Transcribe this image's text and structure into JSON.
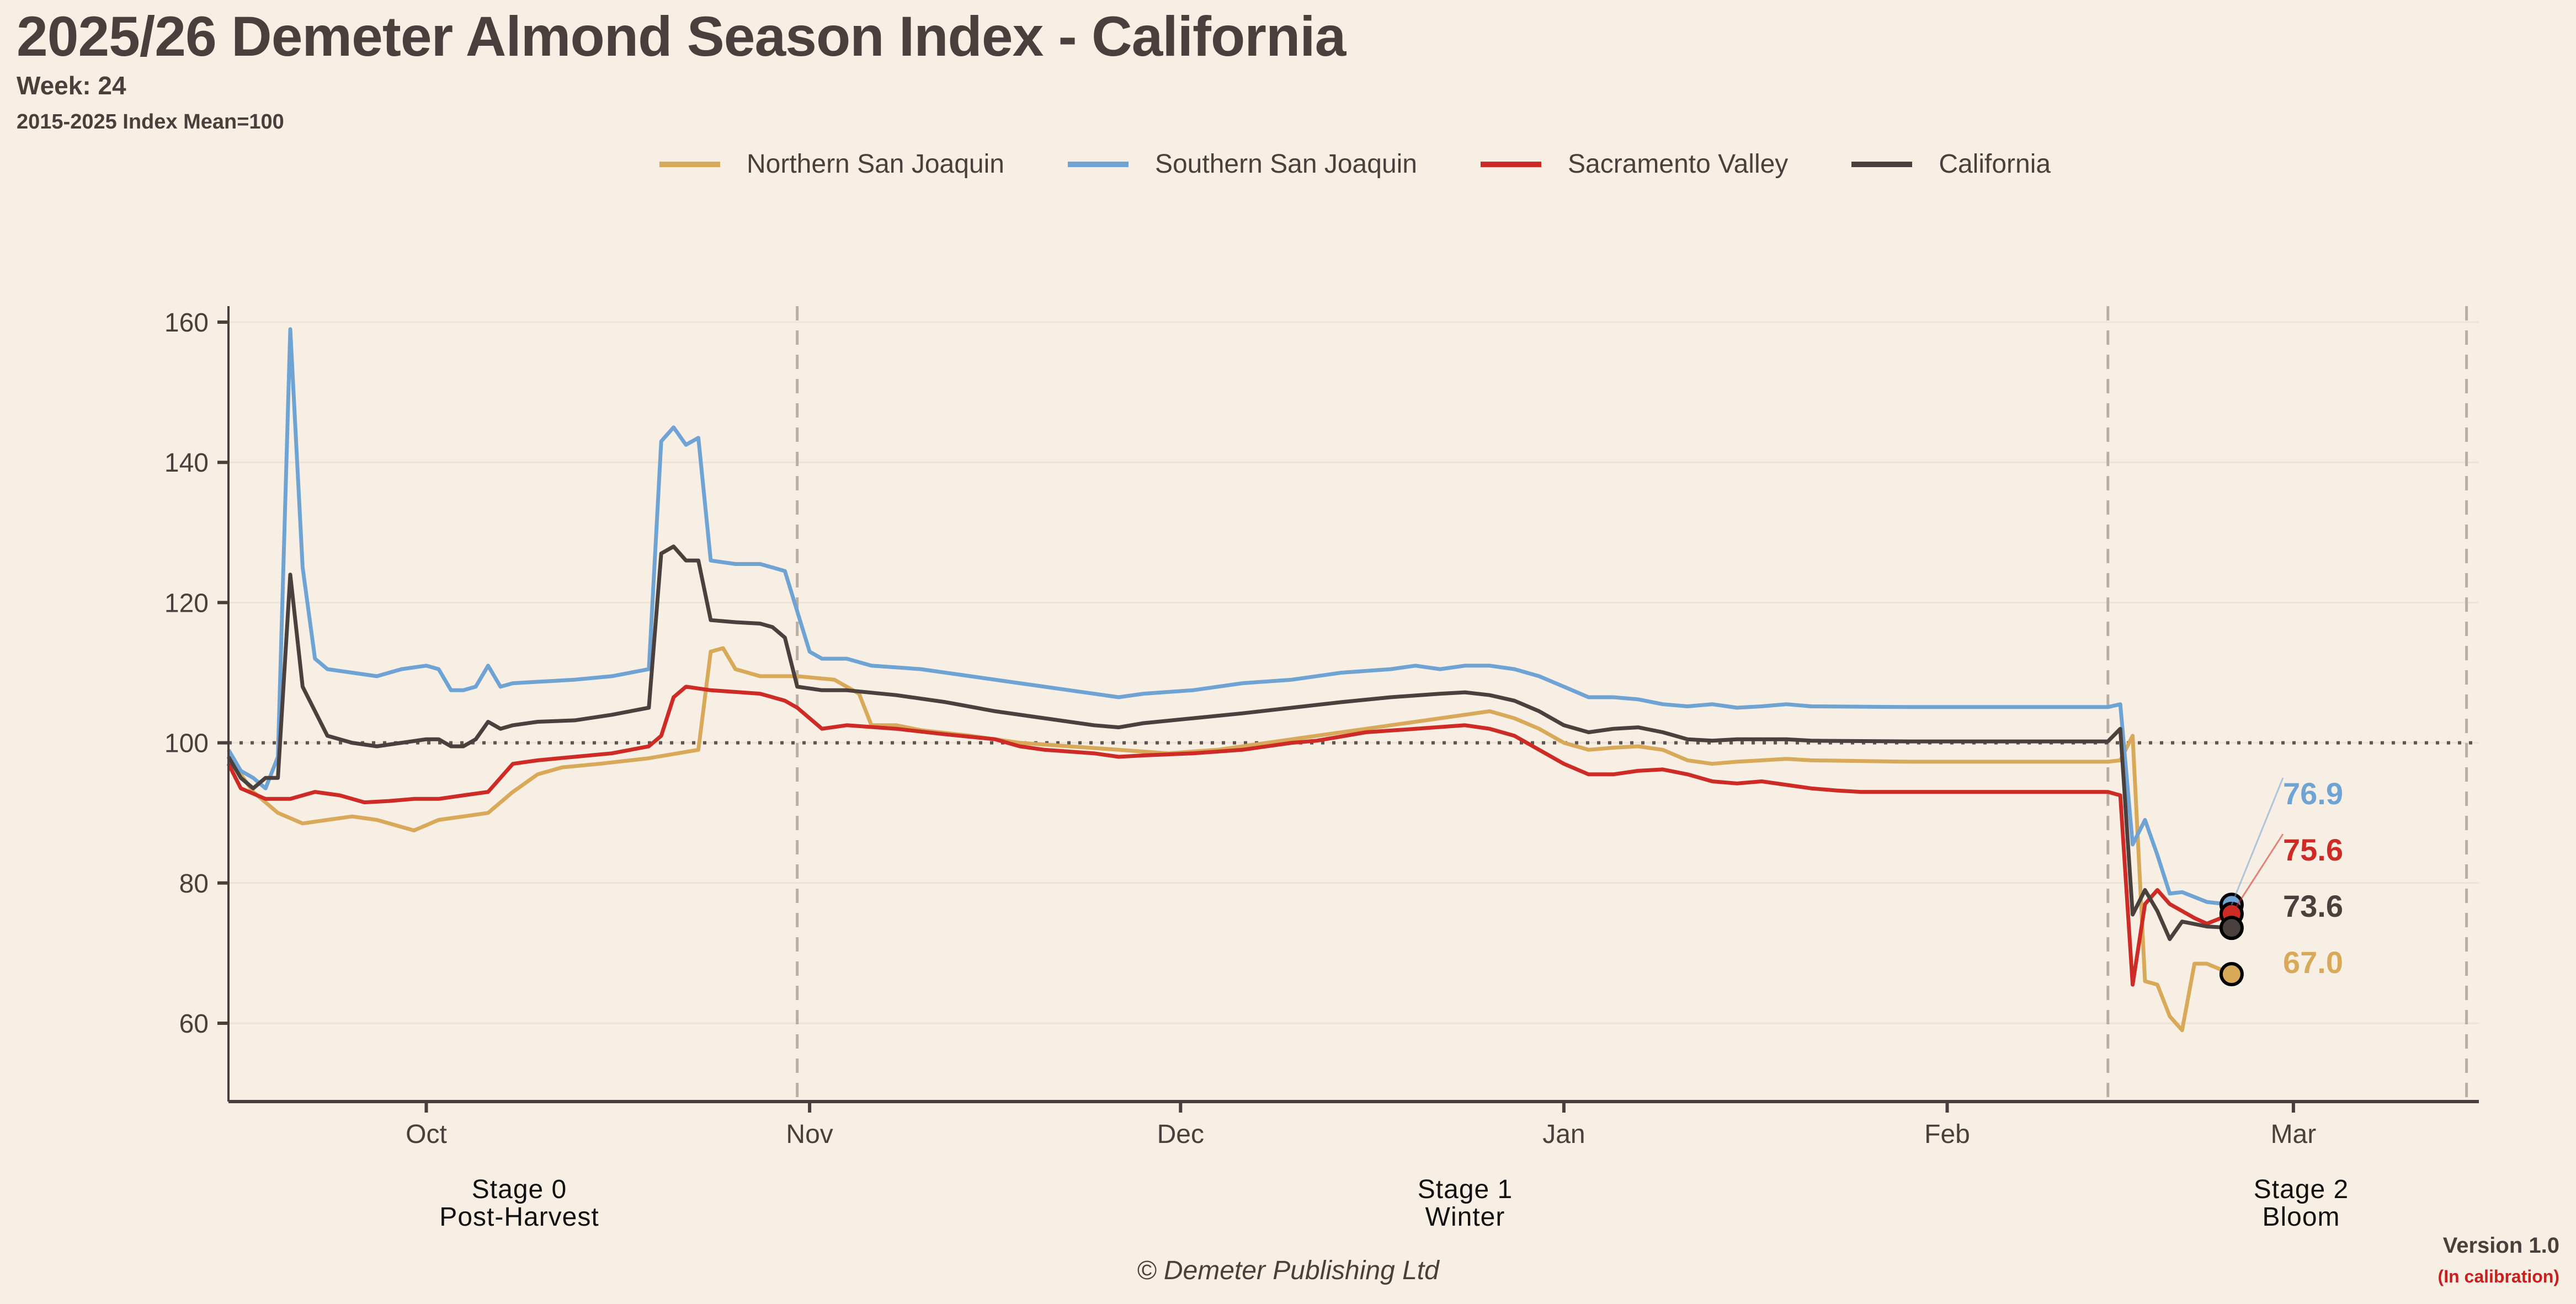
{
  "header": {
    "title": "2025/26 Demeter Almond Season Index - California",
    "week": "Week: 24",
    "baseline_note": "2015-2025 Index Mean=100"
  },
  "footer": {
    "copyright": "© Demeter Publishing Ltd",
    "version": "Version 1.0",
    "calibration": "(In calibration)"
  },
  "stages": [
    {
      "line1": "Stage 0",
      "line2": "Post-Harvest"
    },
    {
      "line1": "Stage 1",
      "line2": "Winter"
    },
    {
      "line1": "Stage 2",
      "line2": "Bloom"
    }
  ],
  "chart_data": {
    "type": "line",
    "title": "2025/26 Demeter Almond Season Index - California",
    "xlabel": "",
    "ylabel": "",
    "x_unit": "days since Oct 1",
    "xlim": [
      -16,
      166
    ],
    "ylim": [
      49,
      162
    ],
    "yticks": [
      60,
      80,
      100,
      120,
      140,
      160
    ],
    "xticks": [
      {
        "label": "Oct",
        "day": 0
      },
      {
        "label": "Nov",
        "day": 31
      },
      {
        "label": "Dec",
        "day": 61
      },
      {
        "label": "Jan",
        "day": 92
      },
      {
        "label": "Feb",
        "day": 123
      },
      {
        "label": "Mar",
        "day": 151
      }
    ],
    "reference_line": {
      "y": 100,
      "style": "dotted"
    },
    "stage_boundaries_day": [
      30,
      136,
      165
    ],
    "grid": true,
    "legend_position": "top-center",
    "series": [
      {
        "name": "Northern San Joaquin",
        "color": "#d9a95a",
        "last_value": 67.0,
        "points": [
          [
            -16,
            98
          ],
          [
            -14,
            93
          ],
          [
            -12,
            90
          ],
          [
            -10,
            88.5
          ],
          [
            -8,
            89
          ],
          [
            -6,
            89.5
          ],
          [
            -4,
            89
          ],
          [
            -2,
            88
          ],
          [
            -1,
            87.5
          ],
          [
            1,
            89
          ],
          [
            3,
            89.5
          ],
          [
            5,
            90
          ],
          [
            7,
            93
          ],
          [
            9,
            95.5
          ],
          [
            11,
            96.5
          ],
          [
            14,
            97
          ],
          [
            18,
            97.8
          ],
          [
            22,
            99
          ],
          [
            23,
            113
          ],
          [
            24,
            113.5
          ],
          [
            25,
            110.5
          ],
          [
            27,
            109.5
          ],
          [
            30,
            109.5
          ],
          [
            33,
            109
          ],
          [
            35,
            107
          ],
          [
            36,
            102.5
          ],
          [
            38,
            102.5
          ],
          [
            40,
            101.8
          ],
          [
            44,
            101
          ],
          [
            48,
            100
          ],
          [
            52,
            99.5
          ],
          [
            56,
            99
          ],
          [
            60,
            98.5
          ],
          [
            64,
            99
          ],
          [
            68,
            100
          ],
          [
            72,
            101
          ],
          [
            76,
            102
          ],
          [
            80,
            103
          ],
          [
            84,
            104
          ],
          [
            86,
            104.5
          ],
          [
            88,
            103.5
          ],
          [
            90,
            102
          ],
          [
            92,
            100
          ],
          [
            94,
            99
          ],
          [
            96,
            99.3
          ],
          [
            98,
            99.5
          ],
          [
            100,
            99
          ],
          [
            102,
            97.5
          ],
          [
            104,
            97
          ],
          [
            106,
            97.3
          ],
          [
            108,
            97.5
          ],
          [
            110,
            97.7
          ],
          [
            112,
            97.5
          ],
          [
            120,
            97.3
          ],
          [
            128,
            97.3
          ],
          [
            136,
            97.3
          ],
          [
            137,
            97.5
          ],
          [
            138,
            101
          ],
          [
            139,
            66
          ],
          [
            140,
            65.5
          ],
          [
            141,
            61
          ],
          [
            142,
            59
          ],
          [
            143,
            68.5
          ],
          [
            144,
            68.5
          ],
          [
            146,
            67
          ]
        ]
      },
      {
        "name": "Southern San Joaquin",
        "color": "#6fa3d4",
        "last_value": 76.9,
        "points": [
          [
            -16,
            99
          ],
          [
            -15,
            96
          ],
          [
            -14,
            95
          ],
          [
            -13,
            93.5
          ],
          [
            -12,
            98
          ],
          [
            -11,
            159
          ],
          [
            -10,
            125
          ],
          [
            -9,
            112
          ],
          [
            -8,
            110.5
          ],
          [
            -6,
            110
          ],
          [
            -4,
            109.5
          ],
          [
            -2,
            110.5
          ],
          [
            0,
            111
          ],
          [
            1,
            110.5
          ],
          [
            2,
            107.5
          ],
          [
            3,
            107.5
          ],
          [
            4,
            108
          ],
          [
            5,
            111
          ],
          [
            6,
            108
          ],
          [
            7,
            108.5
          ],
          [
            9,
            108.7
          ],
          [
            12,
            109
          ],
          [
            15,
            109.5
          ],
          [
            18,
            110.5
          ],
          [
            19,
            143
          ],
          [
            20,
            145
          ],
          [
            21,
            142.5
          ],
          [
            22,
            143.5
          ],
          [
            23,
            126
          ],
          [
            25,
            125.5
          ],
          [
            27,
            125.5
          ],
          [
            28,
            125
          ],
          [
            29,
            124.5
          ],
          [
            31,
            113
          ],
          [
            32,
            112
          ],
          [
            34,
            112
          ],
          [
            36,
            111
          ],
          [
            40,
            110.5
          ],
          [
            44,
            109.5
          ],
          [
            48,
            108.5
          ],
          [
            52,
            107.5
          ],
          [
            56,
            106.5
          ],
          [
            58,
            107
          ],
          [
            62,
            107.5
          ],
          [
            66,
            108.5
          ],
          [
            70,
            109
          ],
          [
            74,
            110
          ],
          [
            78,
            110.5
          ],
          [
            80,
            111
          ],
          [
            82,
            110.5
          ],
          [
            84,
            111
          ],
          [
            86,
            111
          ],
          [
            88,
            110.5
          ],
          [
            90,
            109.5
          ],
          [
            92,
            108
          ],
          [
            94,
            106.5
          ],
          [
            96,
            106.5
          ],
          [
            98,
            106.2
          ],
          [
            100,
            105.5
          ],
          [
            102,
            105.2
          ],
          [
            104,
            105.5
          ],
          [
            106,
            105
          ],
          [
            108,
            105.2
          ],
          [
            110,
            105.5
          ],
          [
            112,
            105.2
          ],
          [
            120,
            105.1
          ],
          [
            128,
            105.1
          ],
          [
            136,
            105.1
          ],
          [
            137,
            105.5
          ],
          [
            138,
            85.5
          ],
          [
            139,
            89
          ],
          [
            140,
            84
          ],
          [
            141,
            78.5
          ],
          [
            142,
            78.7
          ],
          [
            144,
            77.3
          ],
          [
            146,
            76.9
          ]
        ]
      },
      {
        "name": "Sacramento Valley",
        "color": "#cf2b26",
        "last_value": 75.6,
        "points": [
          [
            -16,
            97
          ],
          [
            -15,
            93.5
          ],
          [
            -13,
            92
          ],
          [
            -11,
            92
          ],
          [
            -9,
            93
          ],
          [
            -7,
            92.5
          ],
          [
            -5,
            91.5
          ],
          [
            -3,
            91.7
          ],
          [
            -1,
            92
          ],
          [
            1,
            92
          ],
          [
            3,
            92.5
          ],
          [
            5,
            93
          ],
          [
            6,
            95
          ],
          [
            7,
            97
          ],
          [
            9,
            97.5
          ],
          [
            12,
            98
          ],
          [
            15,
            98.5
          ],
          [
            18,
            99.5
          ],
          [
            19,
            101
          ],
          [
            20,
            106.5
          ],
          [
            21,
            108
          ],
          [
            23,
            107.5
          ],
          [
            27,
            107
          ],
          [
            29,
            106
          ],
          [
            30,
            105
          ],
          [
            32,
            102
          ],
          [
            34,
            102.5
          ],
          [
            38,
            102
          ],
          [
            42,
            101.2
          ],
          [
            46,
            100.5
          ],
          [
            48,
            99.5
          ],
          [
            50,
            99
          ],
          [
            54,
            98.5
          ],
          [
            56,
            98
          ],
          [
            58,
            98.2
          ],
          [
            62,
            98.5
          ],
          [
            66,
            99
          ],
          [
            70,
            100
          ],
          [
            72,
            100.3
          ],
          [
            76,
            101.5
          ],
          [
            80,
            102
          ],
          [
            84,
            102.5
          ],
          [
            86,
            102
          ],
          [
            88,
            101
          ],
          [
            90,
            99
          ],
          [
            92,
            97
          ],
          [
            94,
            95.5
          ],
          [
            96,
            95.5
          ],
          [
            98,
            96
          ],
          [
            100,
            96.2
          ],
          [
            102,
            95.5
          ],
          [
            104,
            94.5
          ],
          [
            106,
            94.2
          ],
          [
            108,
            94.5
          ],
          [
            110,
            94
          ],
          [
            112,
            93.5
          ],
          [
            114,
            93.2
          ],
          [
            116,
            93
          ],
          [
            120,
            93
          ],
          [
            128,
            93
          ],
          [
            136,
            93
          ],
          [
            137,
            92.5
          ],
          [
            138,
            65.5
          ],
          [
            139,
            77
          ],
          [
            140,
            79
          ],
          [
            141,
            77
          ],
          [
            143,
            75
          ],
          [
            144,
            74.2
          ],
          [
            146,
            75.6
          ]
        ]
      },
      {
        "name": "California",
        "color": "#4a403d",
        "last_value": 73.6,
        "points": [
          [
            -16,
            98
          ],
          [
            -15,
            95
          ],
          [
            -14,
            93.5
          ],
          [
            -13,
            95
          ],
          [
            -12,
            95
          ],
          [
            -11,
            124
          ],
          [
            -10,
            108
          ],
          [
            -8,
            101
          ],
          [
            -6,
            100
          ],
          [
            -4,
            99.5
          ],
          [
            -2,
            100
          ],
          [
            0,
            100.5
          ],
          [
            1,
            100.5
          ],
          [
            2,
            99.5
          ],
          [
            3,
            99.5
          ],
          [
            4,
            100.5
          ],
          [
            5,
            103
          ],
          [
            6,
            102
          ],
          [
            7,
            102.5
          ],
          [
            9,
            103
          ],
          [
            12,
            103.2
          ],
          [
            15,
            104
          ],
          [
            18,
            105
          ],
          [
            19,
            127
          ],
          [
            20,
            128
          ],
          [
            21,
            126
          ],
          [
            22,
            126
          ],
          [
            23,
            117.5
          ],
          [
            25,
            117.2
          ],
          [
            27,
            117
          ],
          [
            28,
            116.5
          ],
          [
            29,
            115
          ],
          [
            30,
            108
          ],
          [
            32,
            107.5
          ],
          [
            34,
            107.5
          ],
          [
            38,
            106.8
          ],
          [
            42,
            105.8
          ],
          [
            46,
            104.5
          ],
          [
            50,
            103.5
          ],
          [
            54,
            102.5
          ],
          [
            56,
            102.2
          ],
          [
            58,
            102.8
          ],
          [
            62,
            103.5
          ],
          [
            66,
            104.2
          ],
          [
            70,
            105
          ],
          [
            74,
            105.8
          ],
          [
            78,
            106.5
          ],
          [
            82,
            107
          ],
          [
            84,
            107.2
          ],
          [
            86,
            106.8
          ],
          [
            88,
            106
          ],
          [
            90,
            104.5
          ],
          [
            92,
            102.5
          ],
          [
            94,
            101.5
          ],
          [
            96,
            102
          ],
          [
            98,
            102.2
          ],
          [
            100,
            101.5
          ],
          [
            102,
            100.5
          ],
          [
            104,
            100.3
          ],
          [
            106,
            100.5
          ],
          [
            110,
            100.5
          ],
          [
            112,
            100.3
          ],
          [
            120,
            100.2
          ],
          [
            128,
            100.2
          ],
          [
            136,
            100.2
          ],
          [
            137,
            102
          ],
          [
            138,
            75.5
          ],
          [
            139,
            79
          ],
          [
            140,
            76
          ],
          [
            141,
            72
          ],
          [
            142,
            74.5
          ],
          [
            144,
            73.8
          ],
          [
            146,
            73.6
          ]
        ]
      }
    ],
    "end_labels": [
      {
        "series": "Southern San Joaquin",
        "text": "76.9"
      },
      {
        "series": "Sacramento Valley",
        "text": "75.6"
      },
      {
        "series": "California",
        "text": "73.6"
      },
      {
        "series": "Northern San Joaquin",
        "text": "67.0"
      }
    ]
  }
}
